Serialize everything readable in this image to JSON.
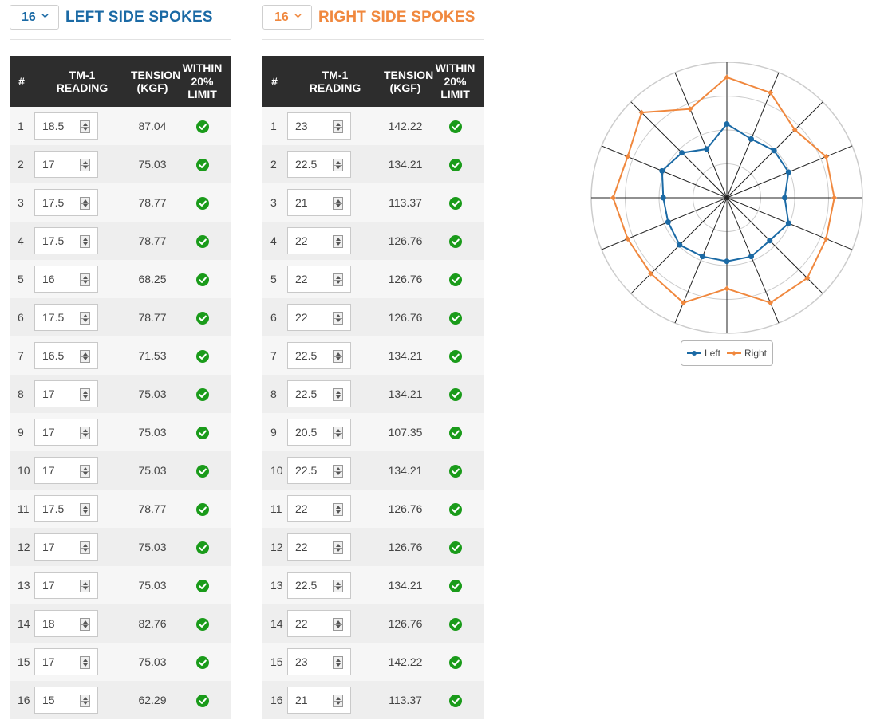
{
  "left": {
    "count": "16",
    "title": "LEFT SIDE SPOKES",
    "headers": [
      "#",
      "TM-1 READING",
      "TENSION (KGF)",
      "WITHIN 20% LIMIT"
    ],
    "rows": [
      {
        "n": "1",
        "reading": "18.5",
        "tension": "87.04",
        "ok": true
      },
      {
        "n": "2",
        "reading": "17",
        "tension": "75.03",
        "ok": true
      },
      {
        "n": "3",
        "reading": "17.5",
        "tension": "78.77",
        "ok": true
      },
      {
        "n": "4",
        "reading": "17.5",
        "tension": "78.77",
        "ok": true
      },
      {
        "n": "5",
        "reading": "16",
        "tension": "68.25",
        "ok": true
      },
      {
        "n": "6",
        "reading": "17.5",
        "tension": "78.77",
        "ok": true
      },
      {
        "n": "7",
        "reading": "16.5",
        "tension": "71.53",
        "ok": true
      },
      {
        "n": "8",
        "reading": "17",
        "tension": "75.03",
        "ok": true
      },
      {
        "n": "9",
        "reading": "17",
        "tension": "75.03",
        "ok": true
      },
      {
        "n": "10",
        "reading": "17",
        "tension": "75.03",
        "ok": true
      },
      {
        "n": "11",
        "reading": "17.5",
        "tension": "78.77",
        "ok": true
      },
      {
        "n": "12",
        "reading": "17",
        "tension": "75.03",
        "ok": true
      },
      {
        "n": "13",
        "reading": "17",
        "tension": "75.03",
        "ok": true
      },
      {
        "n": "14",
        "reading": "18",
        "tension": "82.76",
        "ok": true
      },
      {
        "n": "15",
        "reading": "17",
        "tension": "75.03",
        "ok": true
      },
      {
        "n": "16",
        "reading": "15",
        "tension": "62.29",
        "ok": true
      }
    ]
  },
  "right": {
    "count": "16",
    "title": "RIGHT SIDE SPOKES",
    "headers": [
      "#",
      "TM-1 READING",
      "TENSION (KGF)",
      "WITHIN 20% LIMIT"
    ],
    "rows": [
      {
        "n": "1",
        "reading": "23",
        "tension": "142.22",
        "ok": true
      },
      {
        "n": "2",
        "reading": "22.5",
        "tension": "134.21",
        "ok": true
      },
      {
        "n": "3",
        "reading": "21",
        "tension": "113.37",
        "ok": true
      },
      {
        "n": "4",
        "reading": "22",
        "tension": "126.76",
        "ok": true
      },
      {
        "n": "5",
        "reading": "22",
        "tension": "126.76",
        "ok": true
      },
      {
        "n": "6",
        "reading": "22",
        "tension": "126.76",
        "ok": true
      },
      {
        "n": "7",
        "reading": "22.5",
        "tension": "134.21",
        "ok": true
      },
      {
        "n": "8",
        "reading": "22.5",
        "tension": "134.21",
        "ok": true
      },
      {
        "n": "9",
        "reading": "20.5",
        "tension": "107.35",
        "ok": true
      },
      {
        "n": "10",
        "reading": "22.5",
        "tension": "134.21",
        "ok": true
      },
      {
        "n": "11",
        "reading": "22",
        "tension": "126.76",
        "ok": true
      },
      {
        "n": "12",
        "reading": "22",
        "tension": "126.76",
        "ok": true
      },
      {
        "n": "13",
        "reading": "22.5",
        "tension": "134.21",
        "ok": true
      },
      {
        "n": "14",
        "reading": "22",
        "tension": "126.76",
        "ok": true
      },
      {
        "n": "15",
        "reading": "23",
        "tension": "142.22",
        "ok": true
      },
      {
        "n": "16",
        "reading": "21",
        "tension": "113.37",
        "ok": true
      }
    ]
  },
  "colors": {
    "left": "#1b6aa5",
    "right": "#f0883e",
    "check": "#1a9b1a",
    "header_bg": "#2d2d2d"
  },
  "chart_data": {
    "type": "radar",
    "spokes": 16,
    "rmax": 160,
    "rings": [
      40,
      80,
      120,
      160
    ],
    "grid": true,
    "legend_placement": "bottom",
    "series": [
      {
        "name": "Left",
        "color": "#1b6aa5",
        "values": [
          87.04,
          75.03,
          78.77,
          78.77,
          68.25,
          78.77,
          71.53,
          75.03,
          75.03,
          75.03,
          78.77,
          75.03,
          75.03,
          82.76,
          75.03,
          62.29
        ]
      },
      {
        "name": "Right",
        "color": "#f0883e",
        "values": [
          142.22,
          134.21,
          113.37,
          126.76,
          126.76,
          126.76,
          134.21,
          134.21,
          107.35,
          134.21,
          126.76,
          126.76,
          134.21,
          126.76,
          142.22,
          113.37
        ]
      }
    ]
  }
}
